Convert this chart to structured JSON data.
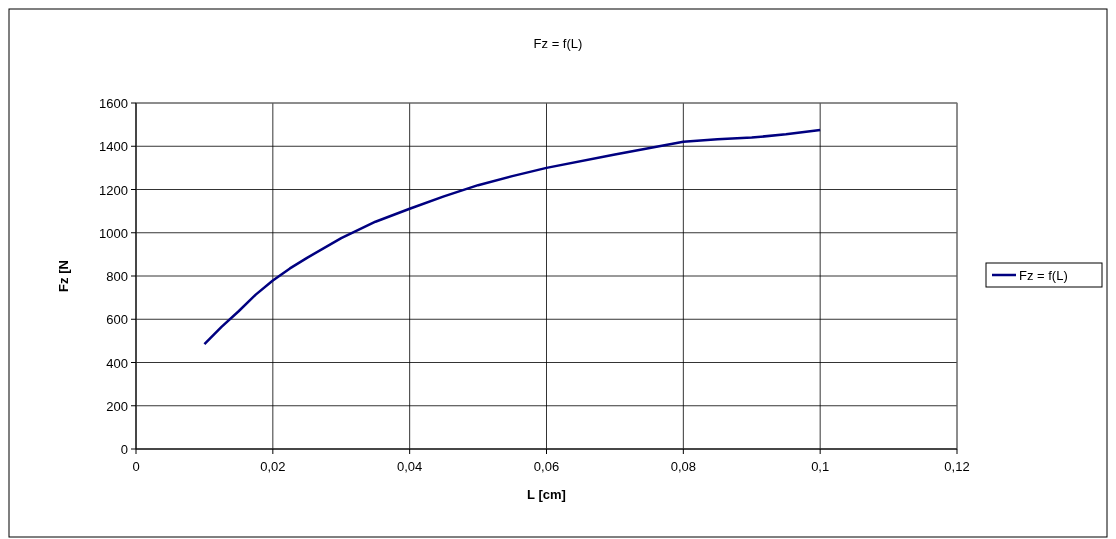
{
  "chart_data": {
    "type": "line",
    "title": "Fz = f(L)",
    "xlabel": "L [cm]",
    "ylabel": "Fz [N",
    "x": [
      0.01,
      0.0125,
      0.015,
      0.0175,
      0.02,
      0.0225,
      0.025,
      0.03,
      0.035,
      0.04,
      0.045,
      0.05,
      0.055,
      0.06,
      0.07,
      0.08,
      0.085,
      0.09,
      0.095,
      0.1
    ],
    "series": [
      {
        "name": "Fz = f(L)",
        "color": "#000080",
        "values": [
          485,
          565,
          637,
          714,
          779,
          835,
          884,
          975,
          1051,
          1111,
          1168,
          1220,
          1262,
          1300,
          1362,
          1421,
          1432,
          1440,
          1455,
          1475
        ]
      }
    ],
    "xlim": [
      0,
      0.12
    ],
    "xticks": [
      {
        "value": 0,
        "label": "0"
      },
      {
        "value": 0.02,
        "label": "0,02"
      },
      {
        "value": 0.04,
        "label": "0,04"
      },
      {
        "value": 0.06,
        "label": "0,06"
      },
      {
        "value": 0.08,
        "label": "0,08"
      },
      {
        "value": 0.1,
        "label": "0,1"
      },
      {
        "value": 0.12,
        "label": "0,12"
      }
    ],
    "ylim": [
      0,
      1600
    ],
    "yticks": [
      0,
      200,
      400,
      600,
      800,
      1000,
      1200,
      1400,
      1600
    ],
    "grid": true,
    "legend": "right",
    "marker": "none",
    "line_style": "solid"
  }
}
